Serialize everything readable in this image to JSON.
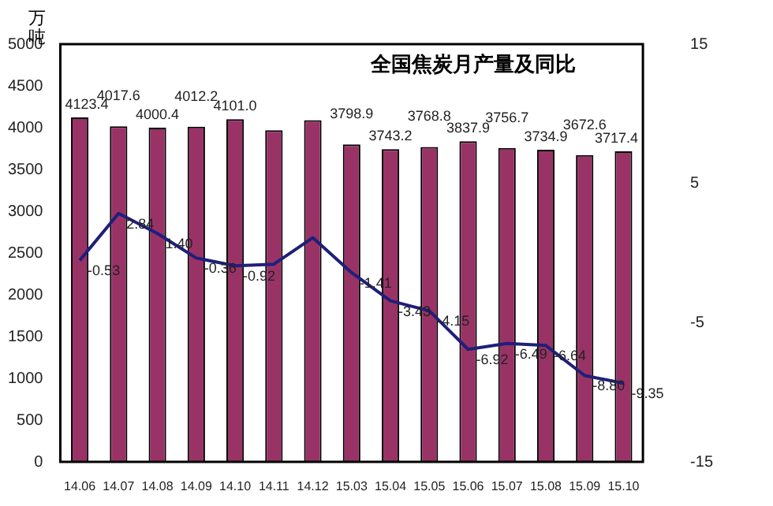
{
  "chart_data": {
    "type": "bar",
    "title": "全国焦炭月产量及同比",
    "ylabel": "万吨",
    "categories": [
      "14.06",
      "14.07",
      "14.08",
      "14.09",
      "14.10",
      "14.11",
      "14.12",
      "15.03",
      "15.04",
      "15.05",
      "15.06",
      "15.07",
      "15.08",
      "15.09",
      "15.10"
    ],
    "series": [
      {
        "color": "#993366",
        "values": [
          4123.4,
          4017.6,
          4000.4,
          4012.2,
          4101.0,
          3970,
          4090,
          3798.9,
          3743.2,
          3768.8,
          3837.9,
          3756.7,
          3734.9,
          3672.6,
          3717.4
        ],
        "value_labels": [
          "4123.4",
          "4017.6",
          "4000.4",
          "4012.2",
          "4101.0",
          null,
          null,
          "3798.9",
          "3743.2",
          "3768.8",
          "3837.9",
          "3756.7",
          "3734.9",
          "3672.6",
          "3717.4"
        ]
      },
      {
        "type": "line",
        "axis": "y2",
        "color": "#1f1f7a",
        "values": [
          -0.53,
          2.84,
          1.4,
          -0.36,
          -0.92,
          -0.8,
          1.1,
          -1.41,
          -3.43,
          -4.15,
          -6.92,
          -6.49,
          -6.64,
          -8.8,
          -9.35
        ],
        "value_labels": [
          "-0.53",
          "2.84",
          "1.40",
          "-0.36",
          "-0.92",
          null,
          null,
          "-1.41",
          "-3.43",
          "-4.15",
          "-6.92",
          "-6.49",
          "-6.64",
          "-8.80",
          "-9.35"
        ]
      }
    ],
    "ylim": [
      0,
      5000
    ],
    "yticks": [
      0,
      500,
      1000,
      1500,
      2000,
      2500,
      3000,
      3500,
      4000,
      4500,
      5000
    ],
    "y2lim": [
      -15,
      15
    ],
    "y2ticks": [
      -15,
      -5,
      5,
      15
    ],
    "grid": false,
    "legend": false,
    "marker": "none"
  }
}
